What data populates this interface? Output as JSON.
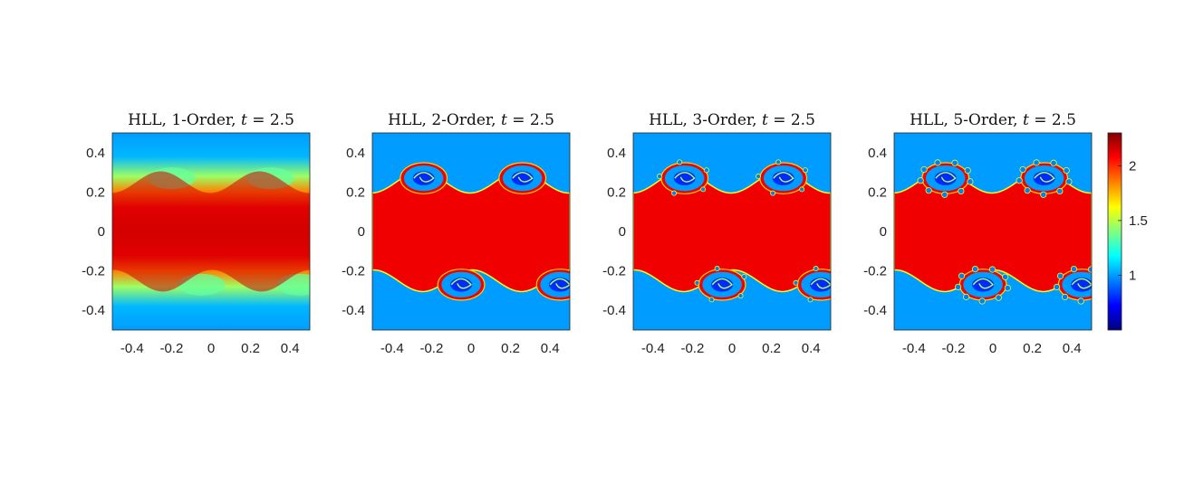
{
  "chart_data": [
    {
      "type": "heatmap",
      "title": "HLL, 1-Order, t = 2.5",
      "title_parts": {
        "prefix": "HLL, 1-Order, ",
        "var": "t",
        "suffix": " = 2.5"
      },
      "xlim": [
        -0.5,
        0.5
      ],
      "ylim": [
        -0.5,
        0.5
      ],
      "xticks": [
        -0.4,
        -0.2,
        0,
        0.2,
        0.4
      ],
      "yticks": [
        0.4,
        0.2,
        0,
        -0.2,
        -0.4
      ],
      "xtick_labels": [
        "-0.4",
        "-0.2",
        "0",
        "0.2",
        "0.4"
      ],
      "ytick_labels": [
        "0.4",
        "0.2",
        "0",
        "-0.2",
        "-0.4"
      ],
      "background_value": 1.0,
      "band_value": 2.0,
      "vortex_count_per_interface": 2,
      "detail": "smooth"
    },
    {
      "type": "heatmap",
      "title": "HLL, 2-Order, t = 2.5",
      "title_parts": {
        "prefix": "HLL, 2-Order, ",
        "var": "t",
        "suffix": " = 2.5"
      },
      "xlim": [
        -0.5,
        0.5
      ],
      "ylim": [
        -0.5,
        0.5
      ],
      "xticks": [
        -0.4,
        -0.2,
        0,
        0.2,
        0.4
      ],
      "yticks": [
        0.4,
        0.2,
        0,
        -0.2,
        -0.4
      ],
      "xtick_labels": [
        "-0.4",
        "-0.2",
        "0",
        "0.2",
        "0.4"
      ],
      "ytick_labels": [
        "0.4",
        "0.2",
        "0",
        "-0.2",
        "-0.4"
      ],
      "background_value": 1.0,
      "band_value": 2.1,
      "vortex_count_per_interface": 2,
      "detail": "rolled vortices"
    },
    {
      "type": "heatmap",
      "title": "HLL, 3-Order, t = 2.5",
      "title_parts": {
        "prefix": "HLL, 3-Order, ",
        "var": "t",
        "suffix": " = 2.5"
      },
      "xlim": [
        -0.5,
        0.5
      ],
      "ylim": [
        -0.5,
        0.5
      ],
      "xticks": [
        -0.4,
        -0.2,
        0,
        0.2,
        0.4
      ],
      "yticks": [
        0.4,
        0.2,
        0,
        -0.2,
        -0.4
      ],
      "xtick_labels": [
        "-0.4",
        "-0.2",
        "0",
        "0.2",
        "0.4"
      ],
      "ytick_labels": [
        "0.4",
        "0.2",
        "0",
        "-0.2",
        "-0.4"
      ],
      "background_value": 1.0,
      "band_value": 2.1,
      "vortex_count_per_interface": 2,
      "detail": "fine-scale vortices"
    },
    {
      "type": "heatmap",
      "title": "HLL, 5-Order, t = 2.5",
      "title_parts": {
        "prefix": "HLL, 5-Order, ",
        "var": "t",
        "suffix": " = 2.5"
      },
      "xlim": [
        -0.5,
        0.5
      ],
      "ylim": [
        -0.5,
        0.5
      ],
      "xticks": [
        -0.4,
        -0.2,
        0,
        0.2,
        0.4
      ],
      "yticks": [
        0.4,
        0.2,
        0,
        -0.2,
        -0.4
      ],
      "xtick_labels": [
        "-0.4",
        "-0.2",
        "0",
        "0.2",
        "0.4"
      ],
      "ytick_labels": [
        "0.4",
        "0.2",
        "0",
        "-0.2",
        "-0.4"
      ],
      "background_value": 1.0,
      "band_value": 2.1,
      "vortex_count_per_interface": 2,
      "detail": "finest-scale vortices"
    }
  ],
  "colorbar": {
    "colormap": "jet",
    "range": [
      0.5,
      2.3
    ],
    "ticks": [
      1,
      1.5,
      2
    ],
    "tick_labels": [
      "1",
      "1.5",
      "2"
    ],
    "colors": [
      "#00007f",
      "#0000ff",
      "#0080ff",
      "#00ffff",
      "#80ff80",
      "#ffff00",
      "#ff8000",
      "#ff0000",
      "#7f0000"
    ]
  }
}
